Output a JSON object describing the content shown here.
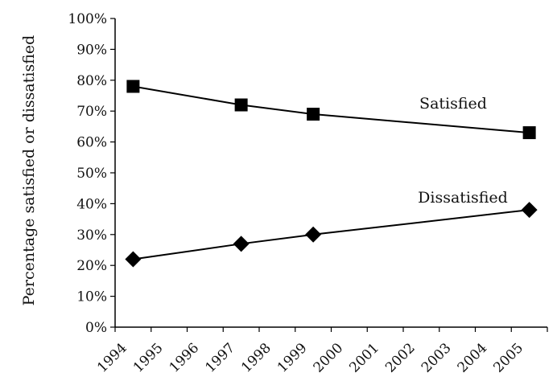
{
  "chart_data": {
    "type": "line",
    "title": "",
    "xlabel": "",
    "ylabel": "Percentage satisfied or dissatisfied",
    "x_ticks": [
      "1994",
      "1995",
      "1996",
      "1997",
      "1998",
      "1999",
      "2000",
      "2001",
      "2002",
      "2003",
      "2004",
      "2005"
    ],
    "xlim": [
      1994,
      2006
    ],
    "ylim": [
      0,
      100
    ],
    "y_ticks": [
      "0%",
      "10%",
      "20%",
      "30%",
      "40%",
      "50%",
      "60%",
      "70%",
      "80%",
      "90%",
      "100%"
    ],
    "grid": false,
    "legend": "none",
    "series": [
      {
        "name": "Satisfied",
        "marker": "square",
        "color": "#000000",
        "x": [
          1994.5,
          1997.5,
          1999.5,
          2005.5
        ],
        "values": [
          78,
          72,
          69,
          63
        ]
      },
      {
        "name": "Dissatisfied",
        "marker": "diamond",
        "color": "#000000",
        "x": [
          1994.5,
          1997.5,
          1999.5,
          2005.5
        ],
        "values": [
          22,
          27,
          30,
          38
        ]
      }
    ]
  }
}
